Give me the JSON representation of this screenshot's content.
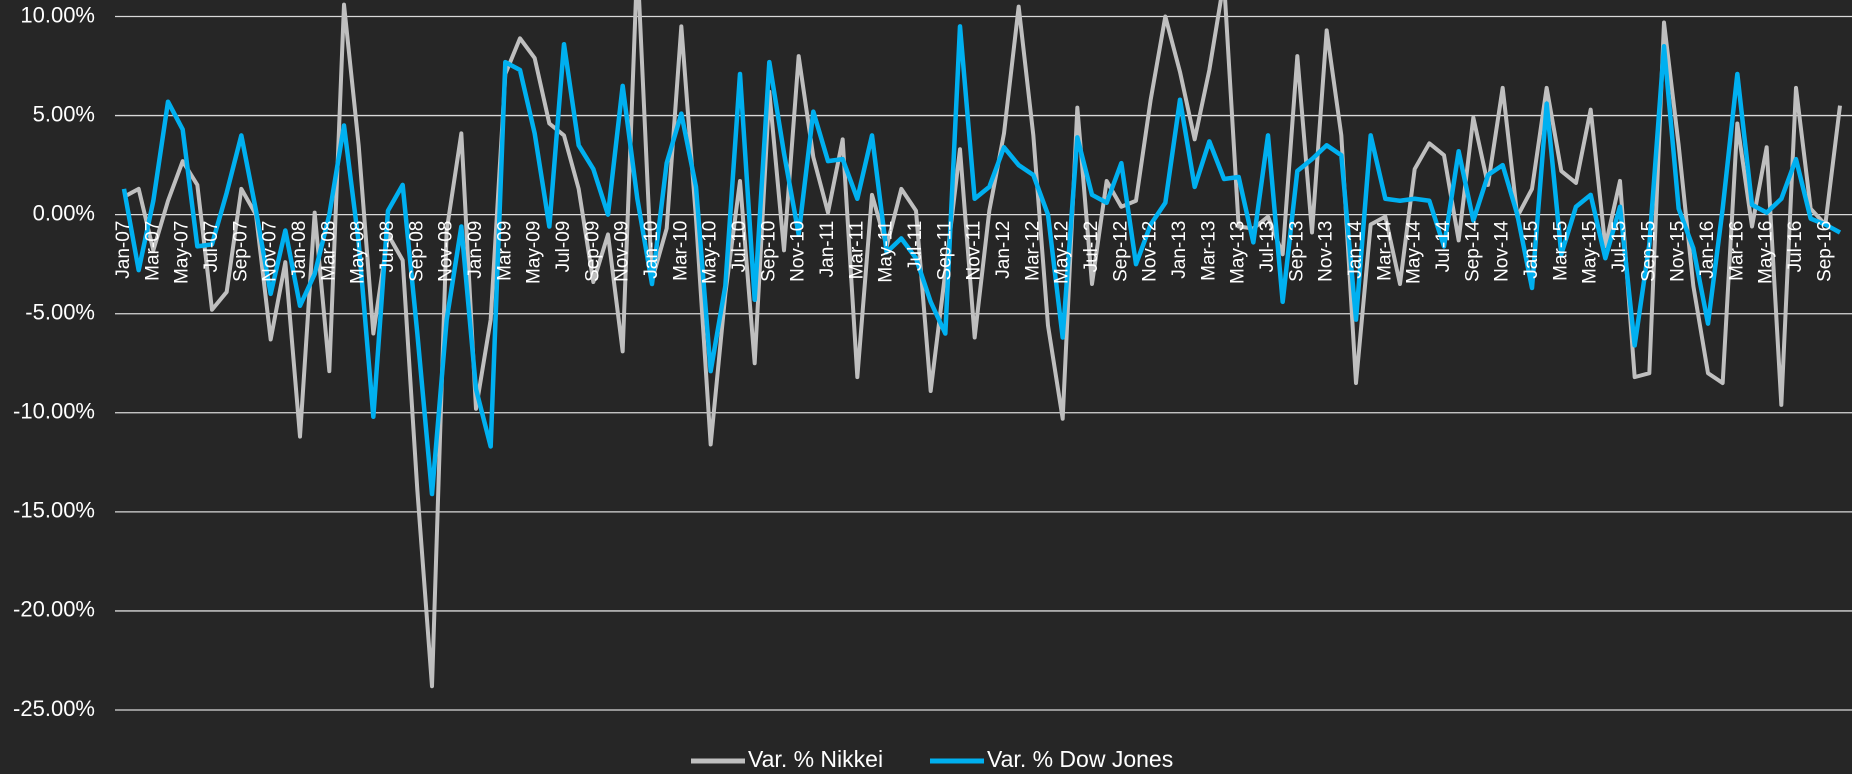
{
  "chart_data": {
    "type": "line",
    "categories": [
      "Jan-07",
      null,
      "Mar-07",
      null,
      "May-07",
      null,
      "Jul-07",
      null,
      "Sep-07",
      null,
      "Nov-07",
      null,
      "Jan-08",
      null,
      "Mar-08",
      null,
      "May-08",
      null,
      "Jul-08",
      null,
      "Sep-08",
      null,
      "Nov-08",
      null,
      "Jan-09",
      null,
      "Mar-09",
      null,
      "May-09",
      null,
      "Jul-09",
      null,
      "Sep-09",
      null,
      "Nov-09",
      null,
      "Jan-10",
      null,
      "Mar-10",
      null,
      "May-10",
      null,
      "Jul-10",
      null,
      "Sep-10",
      null,
      "Nov-10",
      null,
      "Jan-11",
      null,
      "Mar-11",
      null,
      "May-11",
      null,
      "Jul-11",
      null,
      "Sep-11",
      null,
      "Nov-11",
      null,
      "Jan-12",
      null,
      "Mar-12",
      null,
      "May-12",
      null,
      "Jul-12",
      null,
      "Sep-12",
      null,
      "Nov-12",
      null,
      "Jan-13",
      null,
      "Mar-13",
      null,
      "May-13",
      null,
      "Jul-13",
      null,
      "Sep-13",
      null,
      "Nov-13",
      null,
      "Jan-14",
      null,
      "Mar-14",
      null,
      "May-14",
      null,
      "Jul-14",
      null,
      "Sep-14",
      null,
      "Nov-14",
      null,
      "Jan-15",
      null,
      "Mar-15",
      null,
      "May-15",
      null,
      "Jul-15",
      null,
      "Sep-15",
      null,
      "Nov-15",
      null,
      "Jan-16",
      null,
      "Mar-16",
      null,
      "May-16",
      null,
      "Jul-16",
      null,
      "Sep-16",
      null
    ],
    "series": [
      {
        "name": "Var. % Nikkei",
        "color": "#bfbfbf",
        "values": [
          0.9,
          1.3,
          -1.8,
          0.7,
          2.7,
          1.5,
          -4.8,
          -3.9,
          1.3,
          0.0,
          -6.3,
          -2.4,
          -11.2,
          0.1,
          -7.9,
          10.6,
          3.5,
          -6.0,
          -1.0,
          -2.3,
          -13.9,
          -23.8,
          -0.8,
          4.1,
          -9.8,
          -5.3,
          7.1,
          8.9,
          7.9,
          4.6,
          4.0,
          1.3,
          -3.4,
          -1.0,
          -6.9,
          12.8,
          -3.3,
          -0.7,
          9.5,
          -0.2,
          -11.6,
          -4.0,
          1.7,
          -7.5,
          6.2,
          -1.8,
          8.0,
          2.9,
          0.1,
          3.8,
          -8.2,
          1.0,
          -1.6,
          1.3,
          0.2,
          -8.9,
          -2.9,
          3.3,
          -6.2,
          0.2,
          4.1,
          10.5,
          4.0,
          -5.6,
          -10.3,
          5.4,
          -3.5,
          1.7,
          0.4,
          0.7,
          5.8,
          10.0,
          7.2,
          3.8,
          7.3,
          11.8,
          -0.6,
          -0.7,
          -0.1,
          -2.0,
          8.0,
          -0.9,
          9.3,
          4.0,
          -8.5,
          -0.5,
          -0.1,
          -3.5,
          2.3,
          3.6,
          3.0,
          -1.3,
          4.9,
          1.5,
          6.4,
          -0.1,
          1.3,
          6.4,
          2.2,
          1.6,
          5.3,
          -1.6,
          1.7,
          -8.2,
          -8.0,
          9.7,
          3.5,
          -3.6,
          -8.0,
          -8.5,
          4.6,
          -0.6,
          3.4,
          -9.6,
          6.4,
          0.3,
          -0.5,
          5.5
        ]
      },
      {
        "name": "Var. % Dow Jones",
        "color": "#00b0f0",
        "values": [
          1.3,
          -2.8,
          0.7,
          5.7,
          4.3,
          -1.6,
          -1.5,
          1.1,
          4.0,
          0.2,
          -4.0,
          -0.8,
          -4.6,
          -3.0,
          0.0,
          4.5,
          -1.4,
          -10.2,
          0.2,
          1.5,
          -6.0,
          -14.1,
          -5.3,
          -0.6,
          -8.8,
          -11.7,
          7.7,
          7.3,
          4.1,
          -0.6,
          8.6,
          3.5,
          2.3,
          0.0,
          6.5,
          0.8,
          -3.5,
          2.6,
          5.1,
          1.4,
          -7.9,
          -3.6,
          7.1,
          -4.3,
          7.7,
          3.1,
          -1.0,
          5.2,
          2.7,
          2.8,
          0.8,
          4.0,
          -1.9,
          -1.2,
          -2.2,
          -4.4,
          -6.0,
          9.5,
          0.8,
          1.4,
          3.4,
          2.5,
          2.0,
          0.0,
          -6.2,
          3.9,
          1.0,
          0.6,
          2.6,
          -2.5,
          -0.5,
          0.6,
          5.8,
          1.4,
          3.7,
          1.8,
          1.9,
          -1.4,
          4.0,
          -4.4,
          2.2,
          2.8,
          3.5,
          3.0,
          -5.3,
          4.0,
          0.8,
          0.7,
          0.8,
          0.7,
          -1.6,
          3.2,
          -0.3,
          2.0,
          2.5,
          0.0,
          -3.7,
          5.6,
          -2.0,
          0.4,
          1.0,
          -2.2,
          0.4,
          -6.6,
          -1.5,
          8.5,
          0.3,
          -1.7,
          -5.5,
          0.3,
          7.1,
          0.5,
          0.1,
          0.8,
          2.8,
          -0.2,
          -0.5,
          -0.9
        ]
      }
    ],
    "ylim": [
      -25,
      10
    ],
    "yticks": [
      {
        "value": 10,
        "label": "10.00%"
      },
      {
        "value": 5,
        "label": "5.00%"
      },
      {
        "value": 0,
        "label": "0.00%"
      },
      {
        "value": -5,
        "label": "-5.00%"
      },
      {
        "value": -10,
        "label": "-10.00%"
      },
      {
        "value": -15,
        "label": "-15.00%"
      },
      {
        "value": -20,
        "label": "-20.00%"
      },
      {
        "value": -25,
        "label": "-25.00%"
      }
    ],
    "grid": true,
    "legend": "bottom"
  }
}
